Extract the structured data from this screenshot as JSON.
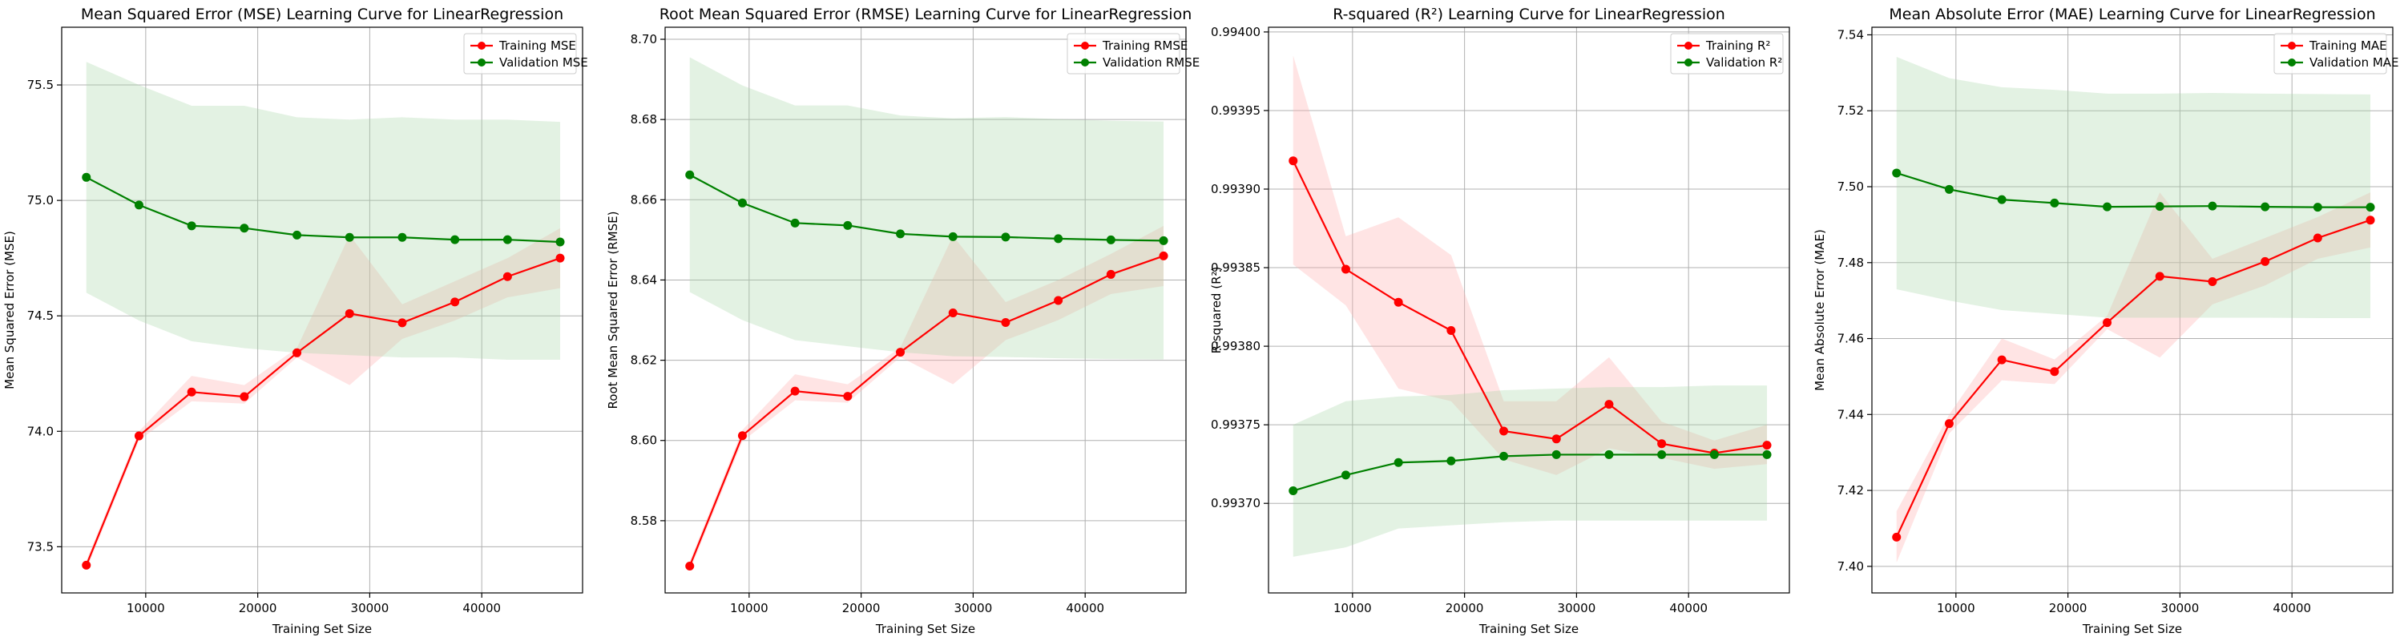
{
  "chart_data": [
    {
      "type": "line",
      "title": "Mean Squared Error (MSE) Learning Curve for LinearRegression",
      "xlabel": "Training Set Size",
      "ylabel": "Mean Squared Error (MSE)",
      "xlim": [
        2500,
        49000
      ],
      "ylim": [
        73.3,
        75.75
      ],
      "x": [
        4700,
        9400,
        14100,
        18800,
        23500,
        28200,
        32900,
        37600,
        42300,
        47000
      ],
      "xticks": [
        10000,
        20000,
        30000,
        40000
      ],
      "xtick_labels": [
        "10000",
        "20000",
        "30000",
        "40000"
      ],
      "yticks": [
        73.5,
        74.0,
        74.5,
        75.0,
        75.5
      ],
      "ytick_labels": [
        "73.5",
        "74.0",
        "74.5",
        "75.0",
        "75.5"
      ],
      "grid": true,
      "legend_position": "top-right",
      "series": [
        {
          "name": "Training MSE",
          "color": "#ff0000",
          "band_color": "#ffb3b3",
          "values": [
            73.42,
            73.98,
            74.17,
            74.15,
            74.34,
            74.51,
            74.47,
            74.56,
            74.67,
            74.75
          ],
          "lower": [
            73.4,
            73.96,
            74.13,
            74.12,
            74.32,
            74.2,
            74.4,
            74.48,
            74.58,
            74.62
          ],
          "upper": [
            73.44,
            74.0,
            74.24,
            74.2,
            74.36,
            74.85,
            74.55,
            74.65,
            74.75,
            74.88
          ]
        },
        {
          "name": "Validation MSE",
          "color": "#008000",
          "band_color": "#a9d8a9",
          "values": [
            75.1,
            74.98,
            74.89,
            74.88,
            74.85,
            74.84,
            74.84,
            74.83,
            74.83,
            74.82
          ],
          "lower": [
            74.6,
            74.48,
            74.39,
            74.36,
            74.34,
            74.33,
            74.32,
            74.32,
            74.31,
            74.31
          ],
          "upper": [
            75.6,
            75.5,
            75.41,
            75.41,
            75.36,
            75.35,
            75.36,
            75.35,
            75.35,
            75.34
          ]
        }
      ]
    },
    {
      "type": "line",
      "title": "Root Mean Squared Error (RMSE) Learning Curve for LinearRegression",
      "xlabel": "Training Set Size",
      "ylabel": "Root Mean Squared Error (RMSE)",
      "xlim": [
        2500,
        49000
      ],
      "ylim": [
        8.562,
        8.703
      ],
      "x": [
        4700,
        9400,
        14100,
        18800,
        23500,
        28200,
        32900,
        37600,
        42300,
        47000
      ],
      "xticks": [
        10000,
        20000,
        30000,
        40000
      ],
      "xtick_labels": [
        "10000",
        "20000",
        "30000",
        "40000"
      ],
      "yticks": [
        8.58,
        8.6,
        8.62,
        8.64,
        8.66,
        8.68,
        8.7
      ],
      "ytick_labels": [
        "8.58",
        "8.60",
        "8.62",
        "8.64",
        "8.66",
        "8.68",
        "8.70"
      ],
      "grid": true,
      "legend_position": "top-right",
      "series": [
        {
          "name": "Training RMSE",
          "color": "#ff0000",
          "band_color": "#ffb3b3",
          "values": [
            8.5687,
            8.6012,
            8.6123,
            8.611,
            8.622,
            8.6318,
            8.6294,
            8.6349,
            8.6414,
            8.646
          ],
          "lower": [
            8.5675,
            8.5998,
            8.61,
            8.6094,
            8.6208,
            8.614,
            8.625,
            8.63,
            8.6365,
            8.6385
          ],
          "upper": [
            8.5699,
            8.6026,
            8.6165,
            8.614,
            8.6232,
            8.651,
            8.6345,
            8.64,
            8.6465,
            8.6535
          ]
        },
        {
          "name": "Validation RMSE",
          "color": "#008000",
          "band_color": "#a9d8a9",
          "values": [
            8.6662,
            8.6592,
            8.6542,
            8.6536,
            8.6515,
            8.6508,
            8.6507,
            8.6503,
            8.65,
            8.6498
          ],
          "lower": [
            8.637,
            8.63,
            8.625,
            8.6235,
            8.622,
            8.621,
            8.6208,
            8.6205,
            8.6203,
            8.6202
          ],
          "upper": [
            8.6955,
            8.6885,
            8.6835,
            8.6835,
            8.681,
            8.6803,
            8.6806,
            8.6801,
            8.6797,
            8.6795
          ]
        }
      ]
    },
    {
      "type": "line",
      "title": "R-squared (R²) Learning Curve for LinearRegression",
      "xlabel": "Training Set Size",
      "ylabel": "R-squared (R²)",
      "xlim": [
        2500,
        49000
      ],
      "ylim": [
        0.993643,
        0.994003
      ],
      "x": [
        4700,
        9400,
        14100,
        18800,
        23500,
        28200,
        32900,
        37600,
        42300,
        47000
      ],
      "xticks": [
        10000,
        20000,
        30000,
        40000
      ],
      "xtick_labels": [
        "10000",
        "20000",
        "30000",
        "40000"
      ],
      "yticks": [
        0.9937,
        0.99375,
        0.9938,
        0.99385,
        0.9939,
        0.99395,
        0.994
      ],
      "ytick_labels": [
        "0.99370",
        "0.99375",
        "0.99380",
        "0.99385",
        "0.99390",
        "0.99395",
        "0.99400"
      ],
      "grid": true,
      "legend_position": "top-right",
      "series": [
        {
          "name": "Training R²",
          "color": "#ff0000",
          "band_color": "#ffb3b3",
          "values": [
            0.993918,
            0.993849,
            0.993828,
            0.99381,
            0.993746,
            0.993741,
            0.993763,
            0.993738,
            0.993732,
            0.993737
          ],
          "lower": [
            0.993852,
            0.993826,
            0.993773,
            0.993765,
            0.993728,
            0.993718,
            0.993735,
            0.993729,
            0.993722,
            0.993725
          ],
          "upper": [
            0.993985,
            0.99387,
            0.993882,
            0.993858,
            0.993765,
            0.993765,
            0.993793,
            0.993752,
            0.99374,
            0.99375
          ]
        },
        {
          "name": "Validation R²",
          "color": "#008000",
          "band_color": "#a9d8a9",
          "values": [
            0.993708,
            0.993718,
            0.993726,
            0.993727,
            0.99373,
            0.993731,
            0.993731,
            0.993731,
            0.993731,
            0.993731
          ],
          "lower": [
            0.993666,
            0.993672,
            0.993684,
            0.993686,
            0.993688,
            0.993689,
            0.993689,
            0.993689,
            0.993689,
            0.993689
          ],
          "upper": [
            0.99375,
            0.993765,
            0.993768,
            0.993769,
            0.993772,
            0.993773,
            0.993774,
            0.993774,
            0.993775,
            0.993775
          ]
        }
      ]
    },
    {
      "type": "line",
      "title": "Mean Absolute Error (MAE) Learning Curve for LinearRegression",
      "xlabel": "Training Set Size",
      "ylabel": "Mean Absolute Error (MAE)",
      "xlim": [
        2500,
        49000
      ],
      "ylim": [
        7.393,
        7.542
      ],
      "x": [
        4700,
        9400,
        14100,
        18800,
        23500,
        28200,
        32900,
        37600,
        42300,
        47000
      ],
      "xticks": [
        10000,
        20000,
        30000,
        40000
      ],
      "xtick_labels": [
        "10000",
        "20000",
        "30000",
        "40000"
      ],
      "yticks": [
        7.4,
        7.42,
        7.44,
        7.46,
        7.48,
        7.5,
        7.52,
        7.54
      ],
      "ytick_labels": [
        "7.40",
        "7.42",
        "7.44",
        "7.46",
        "7.48",
        "7.50",
        "7.52",
        "7.54"
      ],
      "grid": true,
      "legend_position": "top-right",
      "series": [
        {
          "name": "Training MAE",
          "color": "#ff0000",
          "band_color": "#ffb3b3",
          "values": [
            7.4077,
            7.4376,
            7.4544,
            7.4513,
            7.4642,
            7.4764,
            7.475,
            7.4803,
            7.4865,
            7.4912
          ],
          "lower": [
            7.401,
            7.435,
            7.449,
            7.448,
            7.4625,
            7.455,
            7.469,
            7.474,
            7.481,
            7.484
          ],
          "upper": [
            7.4145,
            7.44,
            7.46,
            7.4545,
            7.466,
            7.4985,
            7.481,
            7.4865,
            7.492,
            7.4985
          ]
        },
        {
          "name": "Validation MAE",
          "color": "#008000",
          "band_color": "#a9d8a9",
          "values": [
            7.5036,
            7.4993,
            7.4966,
            7.4957,
            7.4947,
            7.4948,
            7.4949,
            7.4947,
            7.4946,
            7.4946
          ],
          "lower": [
            7.473,
            7.47,
            7.4675,
            7.4665,
            7.4655,
            7.4655,
            7.4655,
            7.4655,
            7.4654,
            7.4654
          ],
          "upper": [
            7.5342,
            7.5286,
            7.5262,
            7.5255,
            7.5245,
            7.5245,
            7.5247,
            7.5245,
            7.5244,
            7.5243
          ]
        }
      ]
    }
  ]
}
